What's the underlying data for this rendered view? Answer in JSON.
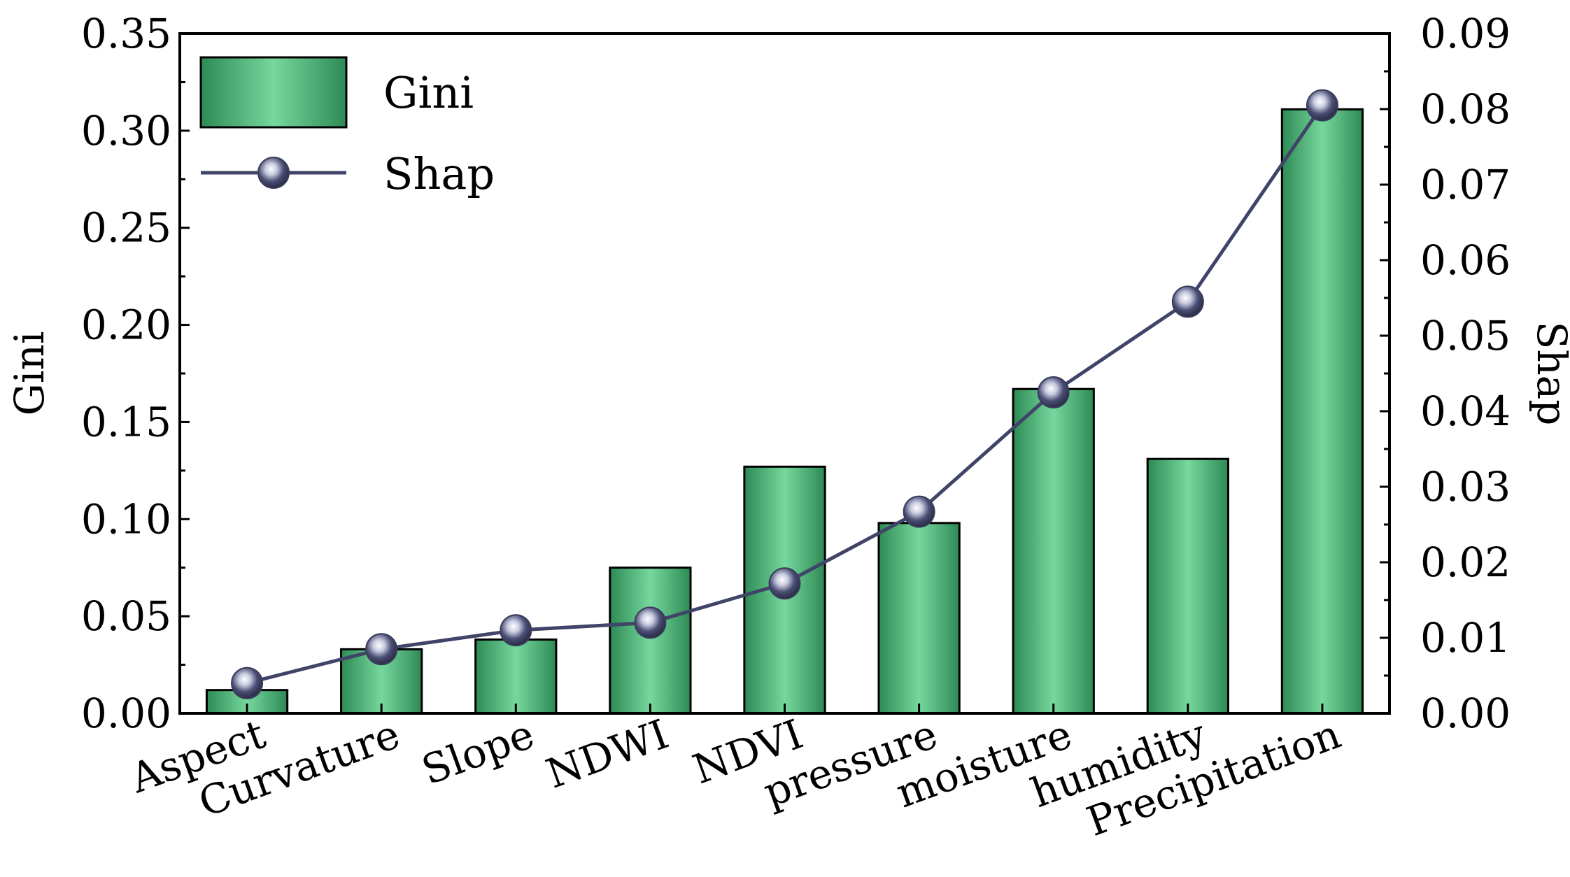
{
  "chart_data": {
    "type": "bar",
    "categories": [
      "Aspect",
      "Curvature",
      "Slope",
      "NDWI",
      "NDVI",
      "pressure",
      "moisture",
      "humidity",
      "Precipitation"
    ],
    "series": [
      {
        "name": "Gini",
        "kind": "bar",
        "axis": "left",
        "values": [
          0.012,
          0.033,
          0.038,
          0.075,
          0.127,
          0.098,
          0.167,
          0.131,
          0.311
        ]
      },
      {
        "name": "Shap",
        "kind": "line",
        "axis": "right",
        "values": [
          0.004,
          0.0085,
          0.011,
          0.012,
          0.0172,
          0.0267,
          0.0425,
          0.0545,
          0.0805
        ]
      }
    ],
    "ylabel": "Gini",
    "y2label": "Shap",
    "ylim": [
      0,
      0.35
    ],
    "y2lim": [
      0,
      0.09
    ],
    "yticks": [
      "0.00",
      "0.05",
      "0.10",
      "0.15",
      "0.20",
      "0.25",
      "0.30",
      "0.35"
    ],
    "y2ticks": [
      "0.00",
      "0.01",
      "0.02",
      "0.03",
      "0.04",
      "0.05",
      "0.06",
      "0.07",
      "0.08",
      "0.09"
    ],
    "legend_position": "top-left",
    "grid": false,
    "colors": {
      "bar_dark": "#2e8a55",
      "bar_light": "#76d89d",
      "bar_edge": "#000000",
      "line": "#3f4468",
      "marker": "#3a3d5c",
      "axis": "#000000"
    }
  }
}
